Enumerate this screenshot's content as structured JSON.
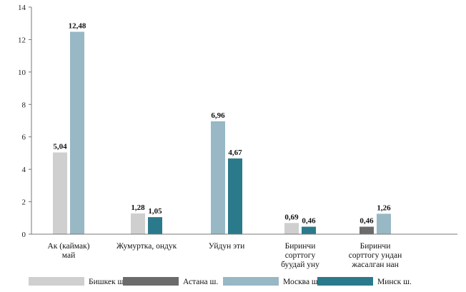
{
  "chart_data": {
    "type": "bar",
    "categories": [
      [
        "Ак (каймак)",
        "май"
      ],
      [
        "Жумуртка,  ондук"
      ],
      [
        "Уйдун эти"
      ],
      [
        "Биринчи",
        "сорттогу",
        "буудай уну"
      ],
      [
        "Биринчи",
        "сорттогу ундан",
        "жасалган нан"
      ]
    ],
    "series": [
      {
        "name": "Бишкек ш.",
        "color": "#cfcfcf",
        "values": [
          5.04,
          1.28,
          null,
          0.69,
          null
        ]
      },
      {
        "name": "Астана ш.",
        "color": "#6b6b6b",
        "values": [
          null,
          null,
          null,
          null,
          0.46
        ]
      },
      {
        "name": "Москва ш.",
        "color": "#97b8c4",
        "values": [
          12.48,
          null,
          6.96,
          null,
          1.26
        ]
      },
      {
        "name": "Минск ш.",
        "color": "#2a7a8c",
        "values": [
          null,
          1.05,
          4.67,
          0.46,
          null
        ]
      }
    ],
    "data_labels": [
      [
        [
          "5,04"
        ],
        [
          "12,48"
        ]
      ],
      [
        [
          "1,28"
        ],
        [
          "1,05"
        ]
      ],
      [
        [
          "6,96"
        ],
        [
          "4,67"
        ]
      ],
      [
        [
          "0,69"
        ],
        [
          "0,46"
        ]
      ],
      [
        [
          "0,46"
        ],
        [
          "1,26"
        ]
      ]
    ],
    "ylim": [
      0,
      14
    ],
    "yticks": [
      "0",
      "2",
      "4",
      "6",
      "8",
      "10",
      "12",
      "14"
    ],
    "ytick_values": [
      0,
      2,
      4,
      6,
      8,
      10,
      12,
      14
    ],
    "title": "",
    "xlabel": "",
    "ylabel": "",
    "legend_position": "bottom"
  }
}
